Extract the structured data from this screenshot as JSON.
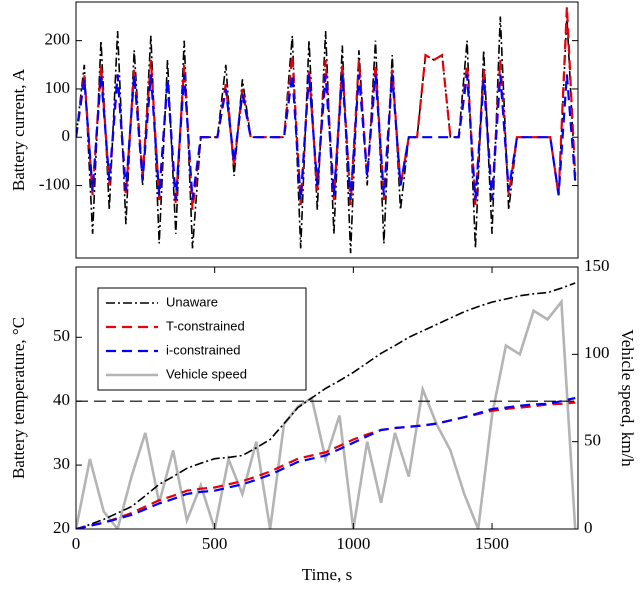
{
  "chart_data": [
    {
      "type": "line",
      "y_label": "Battery current, A",
      "x": [
        0,
        30,
        60,
        90,
        120,
        150,
        180,
        210,
        240,
        270,
        300,
        330,
        360,
        390,
        420,
        450,
        480,
        510,
        540,
        570,
        600,
        630,
        660,
        690,
        720,
        750,
        780,
        810,
        840,
        870,
        900,
        930,
        960,
        990,
        1020,
        1050,
        1080,
        1110,
        1140,
        1170,
        1200,
        1230,
        1260,
        1290,
        1320,
        1350,
        1380,
        1410,
        1440,
        1470,
        1500,
        1530,
        1560,
        1590,
        1620,
        1650,
        1680,
        1710,
        1740,
        1770,
        1800
      ],
      "xlim": [
        0,
        1810
      ],
      "ylim": [
        -250,
        280
      ],
      "yticks": [
        -100,
        0,
        100,
        200
      ],
      "series": [
        {
          "color": "#000000",
          "dash": "dashdot",
          "values": [
            0,
            150,
            -200,
            200,
            -150,
            220,
            -180,
            180,
            -100,
            210,
            -220,
            160,
            -200,
            200,
            -230,
            0,
            0,
            0,
            150,
            -80,
            120,
            0,
            0,
            0,
            0,
            0,
            210,
            -230,
            200,
            -150,
            220,
            -200,
            190,
            -240,
            180,
            -100,
            200,
            -220,
            170,
            -150,
            0,
            0,
            170,
            160,
            170,
            0,
            0,
            200,
            -230,
            180,
            -200,
            250,
            -150,
            0,
            0,
            0,
            0,
            0,
            -120,
            250,
            -90
          ]
        },
        {
          "color": "#e8000b",
          "dash": "dashed",
          "values": [
            0,
            130,
            -120,
            150,
            -100,
            130,
            -120,
            140,
            -80,
            160,
            -130,
            120,
            -140,
            150,
            -150,
            0,
            0,
            0,
            110,
            -60,
            100,
            0,
            0,
            0,
            0,
            0,
            170,
            -140,
            140,
            -110,
            160,
            -130,
            150,
            -140,
            160,
            -80,
            150,
            -130,
            140,
            -100,
            0,
            0,
            170,
            160,
            170,
            0,
            0,
            150,
            -140,
            140,
            -130,
            160,
            -120,
            0,
            0,
            0,
            0,
            0,
            -120,
            270,
            -80
          ]
        },
        {
          "color": "#0000ff",
          "dash": "dashed",
          "values": [
            0,
            120,
            -110,
            130,
            -90,
            130,
            -110,
            130,
            -90,
            130,
            -120,
            120,
            -130,
            130,
            -130,
            0,
            0,
            0,
            100,
            -50,
            90,
            0,
            0,
            0,
            0,
            0,
            130,
            -130,
            130,
            -100,
            130,
            -120,
            130,
            -130,
            130,
            -80,
            130,
            -120,
            130,
            -100,
            0,
            0,
            0,
            0,
            0,
            0,
            0,
            130,
            -130,
            120,
            -130,
            130,
            -110,
            0,
            0,
            0,
            0,
            0,
            -120,
            130,
            -90
          ]
        }
      ]
    },
    {
      "type": "line",
      "x_label": "Time, s",
      "y_label": "Battery temperature, °C",
      "y2_label": "Vehicle speed, km/h",
      "x": [
        0,
        50,
        100,
        150,
        200,
        250,
        300,
        350,
        400,
        450,
        500,
        550,
        600,
        650,
        700,
        750,
        800,
        850,
        900,
        950,
        1000,
        1050,
        1100,
        1150,
        1200,
        1250,
        1300,
        1350,
        1400,
        1450,
        1500,
        1550,
        1600,
        1650,
        1700,
        1750,
        1800
      ],
      "xlim": [
        0,
        1810
      ],
      "xticks": [
        0,
        500,
        1000,
        1500
      ],
      "ylim": [
        20,
        61
      ],
      "yticks": [
        20,
        30,
        40,
        50
      ],
      "y2lim": [
        0,
        150
      ],
      "y2ticks": [
        0,
        50,
        100,
        150
      ],
      "reference_line": 40,
      "legend": "upper left",
      "series": [
        {
          "name": "Vehicle speed",
          "color": "#b4b4b4",
          "dash": "solid",
          "axis": "y2",
          "legend_order": 3,
          "values": [
            0,
            40,
            10,
            0,
            30,
            55,
            15,
            45,
            5,
            25,
            0,
            40,
            20,
            50,
            0,
            60,
            70,
            75,
            40,
            65,
            0,
            50,
            15,
            55,
            30,
            80,
            60,
            45,
            20,
            0,
            65,
            105,
            100,
            125,
            120,
            130,
            0
          ]
        },
        {
          "name": "Unaware",
          "color": "#000000",
          "dash": "dashdot",
          "legend_order": 0,
          "values": [
            20,
            20.7,
            21.5,
            22.5,
            23.5,
            25.2,
            27,
            28.2,
            29.5,
            30.3,
            31,
            31.2,
            31.5,
            32.7,
            34,
            36.5,
            39,
            40.5,
            42,
            43.2,
            44.5,
            46,
            47.5,
            48.7,
            50,
            51,
            52,
            53,
            54,
            54.8,
            55.5,
            56,
            56.5,
            56.8,
            57,
            57.7,
            58.5
          ]
        },
        {
          "name": "T-constrained",
          "color": "#e8000b",
          "dash": "dashed",
          "legend_order": 1,
          "values": [
            20,
            20.5,
            21,
            21.7,
            22.5,
            23.5,
            24.5,
            25.2,
            26,
            26.3,
            26.5,
            27,
            27.5,
            28.2,
            29,
            30,
            31,
            31.5,
            32,
            33,
            34,
            34.8,
            35.5,
            35.8,
            36,
            36.2,
            36.5,
            37,
            37.5,
            38,
            38.5,
            38.8,
            39,
            39.2,
            39.5,
            39.6,
            39.8
          ]
        },
        {
          "name": "i-constrained",
          "color": "#0000ff",
          "dash": "dashed",
          "legend_order": 2,
          "values": [
            20,
            20.5,
            21,
            21.6,
            22.2,
            23.1,
            24,
            24.7,
            25.5,
            25.8,
            26,
            26.5,
            27,
            27.7,
            28.5,
            29.5,
            30.5,
            31,
            31.5,
            32.5,
            33.5,
            34.5,
            35.5,
            35.8,
            36,
            36.2,
            36.5,
            37,
            37.5,
            38.1,
            38.8,
            39,
            39.3,
            39.5,
            39.6,
            40,
            40.5
          ]
        }
      ]
    }
  ]
}
